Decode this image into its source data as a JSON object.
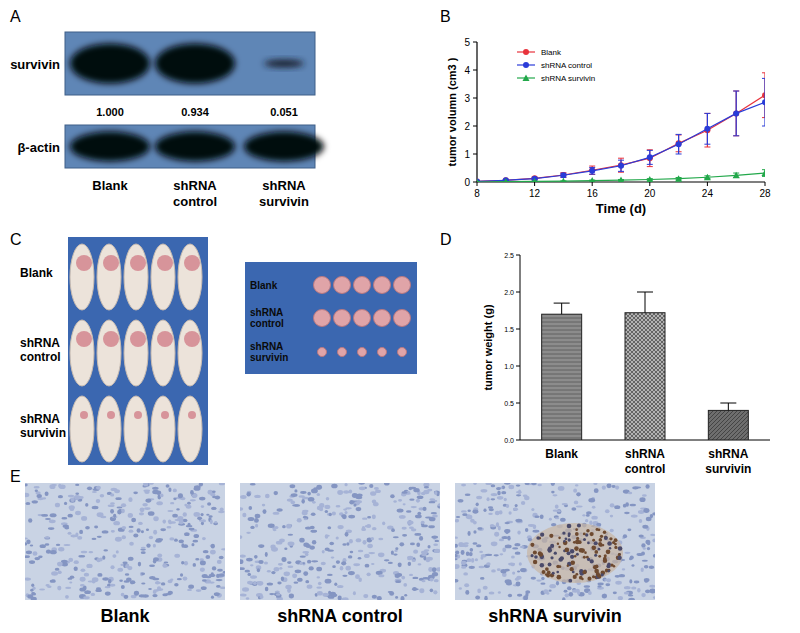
{
  "panel_labels": [
    "A",
    "B",
    "C",
    "D",
    "E"
  ],
  "western_blot": {
    "proteins": [
      "survivin",
      "β-actin"
    ],
    "lanes": [
      "Blank",
      "shRNA control",
      "shRNA survivin"
    ],
    "survivin_quantification": [
      "1.000",
      "0.934",
      "0.051"
    ]
  },
  "chart_data": [
    {
      "type": "line",
      "x_label": "Time (d)",
      "y_label": "tumor volumn (cm3 )",
      "x": [
        8,
        10,
        12,
        14,
        16,
        18,
        20,
        22,
        24,
        26,
        28
      ],
      "xlim": [
        8,
        28
      ],
      "xticks": [
        8,
        12,
        16,
        20,
        24,
        28
      ],
      "ylim": [
        0,
        5
      ],
      "yticks": [
        0,
        1,
        2,
        3,
        4,
        5
      ],
      "legend": "upper left",
      "series": [
        {
          "name": "Blank",
          "color": "#e8323c",
          "marker": "circle",
          "values": [
            0.02,
            0.06,
            0.13,
            0.25,
            0.42,
            0.6,
            0.85,
            1.38,
            1.85,
            2.45,
            3.1
          ],
          "errors": [
            0.01,
            0.03,
            0.05,
            0.08,
            0.15,
            0.25,
            0.3,
            0.3,
            0.6,
            0.8,
            0.8
          ]
        },
        {
          "name": "shRNA control",
          "color": "#2a3cd8",
          "marker": "circle",
          "values": [
            0.02,
            0.06,
            0.12,
            0.24,
            0.4,
            0.58,
            0.88,
            1.35,
            1.9,
            2.45,
            2.85
          ],
          "errors": [
            0.01,
            0.03,
            0.04,
            0.07,
            0.12,
            0.2,
            0.25,
            0.35,
            0.55,
            0.8,
            0.85
          ]
        },
        {
          "name": "shRNA survivin",
          "color": "#22a84a",
          "marker": "triangle",
          "values": [
            0.0,
            0.01,
            0.02,
            0.03,
            0.05,
            0.07,
            0.09,
            0.12,
            0.17,
            0.24,
            0.32
          ],
          "errors": [
            0.0,
            0.005,
            0.01,
            0.01,
            0.02,
            0.02,
            0.03,
            0.04,
            0.05,
            0.08,
            0.12
          ]
        }
      ]
    },
    {
      "type": "bar",
      "y_label": "tumor weight (g)",
      "categories": [
        "Blank",
        "shRNA control",
        "shRNA survivin"
      ],
      "values": [
        1.7,
        1.72,
        0.4
      ],
      "errors": [
        0.15,
        0.28,
        0.1
      ],
      "colors": [
        "#8c8c8c",
        "#b4b4b4",
        "#6e6e6e"
      ],
      "ylim": [
        0,
        2.5
      ],
      "yticks": [
        {
          "value": 0,
          "label": "0.0"
        },
        {
          "value": 0.5,
          "label": "0.5"
        },
        {
          "value": 1,
          "label": "1.0"
        },
        {
          "value": 1.5,
          "label": "1.5"
        },
        {
          "value": 2,
          "label": "2.0"
        },
        {
          "value": 2.5,
          "label": "2.5"
        }
      ]
    }
  ],
  "tumor_photos": {
    "groups": [
      "Blank",
      "shRNA control",
      "shRNA survivin"
    ]
  },
  "ihc_images": {
    "captions": [
      "Blank",
      "shRNA control",
      "shRNA survivin"
    ]
  }
}
